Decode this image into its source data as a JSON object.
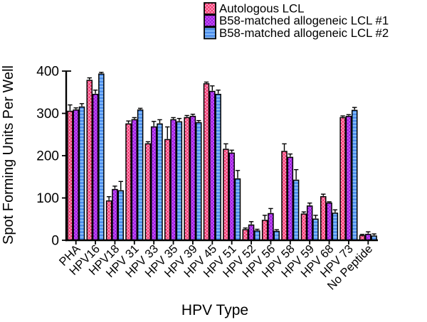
{
  "figure": {
    "background": "#FFFFFF",
    "axis_color": "#000000"
  },
  "chart_data": {
    "type": "bar",
    "title": "",
    "xlabel": "HPV Type",
    "ylabel": "Spot Forming Units Per Well",
    "ylim": [
      0,
      400
    ],
    "yticks": [
      0,
      100,
      200,
      300,
      400
    ],
    "grid": false,
    "legend_position": "top-right",
    "error_bars": "upper",
    "categories": [
      "PHA",
      "HPV16",
      "HPV18",
      "HPV 31",
      "HPV 33",
      "HPV 35",
      "HPV 39",
      "HPV 45",
      "HPV 51",
      "HPV 52",
      "HPV 56",
      "HPV 58",
      "HPV 59",
      "HPV 68",
      "HPV 73",
      "No Peptide"
    ],
    "series": [
      {
        "name": "Autologous LCL",
        "fill_style": "checker",
        "color": "#F23069",
        "color2": "#FF9DC0",
        "values": [
          305,
          378,
          93,
          275,
          228,
          238,
          290,
          370,
          215,
          25,
          47,
          210,
          62,
          103,
          290,
          11
        ],
        "errors": [
          15,
          6,
          10,
          7,
          5,
          30,
          5,
          4,
          13,
          4,
          12,
          18,
          5,
          6,
          4,
          3
        ]
      },
      {
        "name": "B58-matched allogeneic LCL #1",
        "fill_style": "checker",
        "color": "#9914DC",
        "color2": "#C45BF5",
        "values": [
          308,
          345,
          120,
          285,
          268,
          285,
          293,
          352,
          206,
          36,
          63,
          196,
          81,
          88,
          293,
          14
        ],
        "errors": [
          5,
          10,
          8,
          5,
          13,
          5,
          5,
          13,
          7,
          8,
          12,
          8,
          7,
          3,
          4,
          6
        ]
      },
      {
        "name": "B58-matched allogeneic LCL #2",
        "fill_style": "hstripes",
        "color": "#4D8EEC",
        "color2": "#8FC3FB",
        "values": [
          315,
          393,
          117,
          308,
          275,
          280,
          278,
          345,
          145,
          22,
          21,
          142,
          50,
          64,
          307,
          10
        ],
        "errors": [
          8,
          4,
          22,
          4,
          10,
          8,
          5,
          10,
          20,
          4,
          4,
          25,
          9,
          8,
          7,
          5
        ]
      }
    ]
  }
}
